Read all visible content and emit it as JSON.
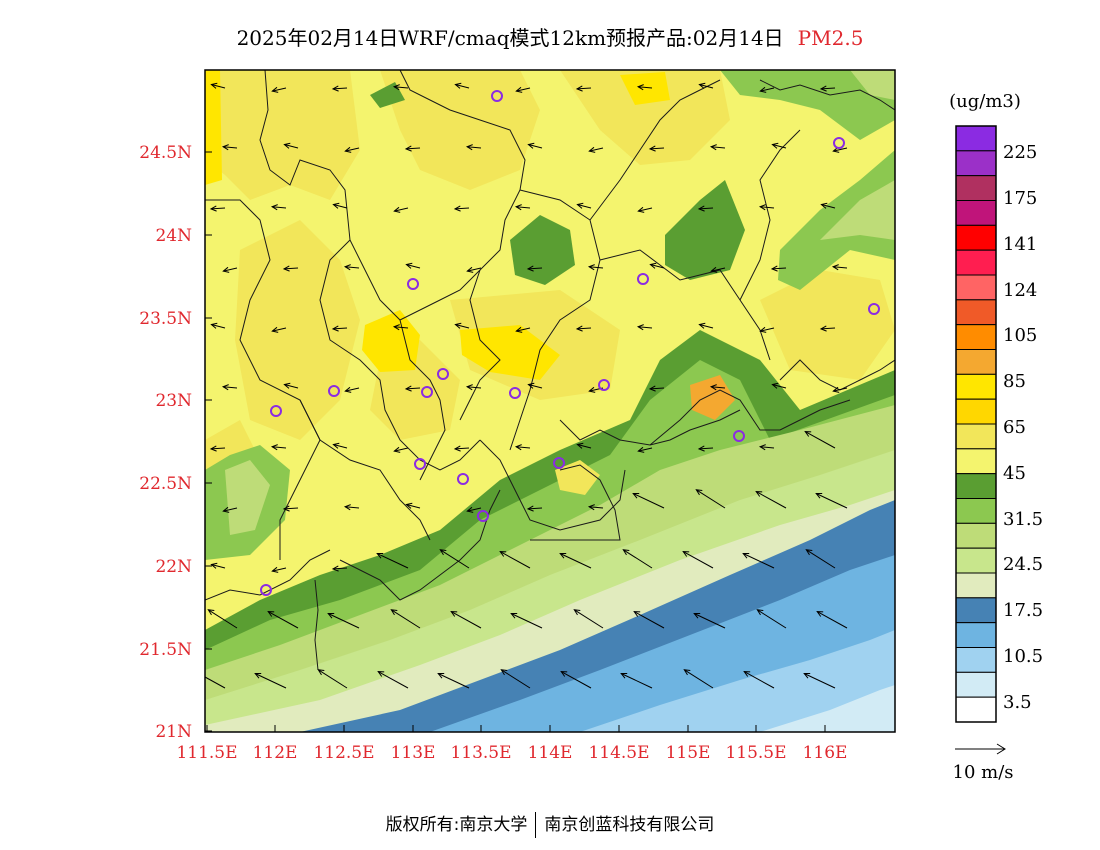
{
  "title": {
    "main": "2025年02月14日WRF/cmaq模式12km预报产品:02月14日",
    "pollutant": "PM2.5"
  },
  "axes": {
    "lat_labels": [
      "24.5N",
      "24N",
      "23.5N",
      "23N",
      "22.5N",
      "22N",
      "21.5N",
      "21N"
    ],
    "lon_labels": [
      "111.5E",
      "112E",
      "112.5E",
      "113E",
      "113.5E",
      "114E",
      "114.5E",
      "115E",
      "115.5E",
      "116E"
    ]
  },
  "colorbar": {
    "unit": "(ug/m3)",
    "labels": [
      "225",
      "175",
      "141",
      "124",
      "105",
      "85",
      "65",
      "45",
      "31.5",
      "24.5",
      "17.5",
      "10.5",
      "3.5"
    ],
    "colors": [
      "#8b2be2",
      "#9b30c8",
      "#b03060",
      "#c0147a",
      "#ff0000",
      "#ff1e50",
      "#ff6464",
      "#f05a28",
      "#ff8c00",
      "#f4a830",
      "#ffe600",
      "#ffd700",
      "#f2e65a",
      "#f4f46e",
      "#5a9e32",
      "#8cc850",
      "#bedc78",
      "#c8e68c",
      "#e1ebbe",
      "#4682b4",
      "#6eb4e1",
      "#a0d2f0",
      "#d2ebf5",
      "#ffffff"
    ]
  },
  "wind": {
    "reference_label": "10 m/s"
  },
  "footer": {
    "left": "版权所有:南京大学",
    "right": "南京创蓝科技有限公司"
  }
}
